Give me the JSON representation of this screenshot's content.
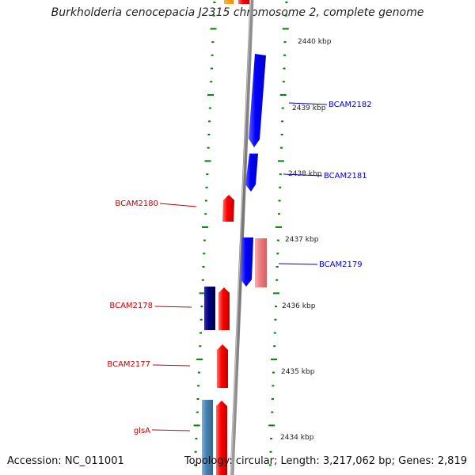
{
  "title": "Burkholderia cenocepacia J2315 chromosome 2, complete genome",
  "accession": "Accession: NC_011001",
  "summary": "Topology: circular; Length: 3,217,062 bp; Genes: 2,819",
  "scale_labels": [
    "2440 kbp",
    "2439 kbp",
    "2438 kbp",
    "2437 kbp",
    "2436 kbp",
    "2435 kbp",
    "2434 kbp"
  ],
  "genes": [
    {
      "name": "BCAM2182",
      "strand": "forward",
      "color": "#0000ff"
    },
    {
      "name": "BCAM2181",
      "strand": "forward",
      "color": "#0000ff"
    },
    {
      "name": "BCAM2180",
      "strand": "reverse",
      "color": "#ff0000"
    },
    {
      "name": "BCAM2179",
      "strand": "forward",
      "color": "#0000ff"
    },
    {
      "name": "BCAM2178",
      "strand": "reverse",
      "color": "#ff0000"
    },
    {
      "name": "BCAM2177",
      "strand": "reverse",
      "color": "#ff0000"
    },
    {
      "name": "glsA",
      "strand": "reverse",
      "color": "#ff0000"
    }
  ],
  "colors": {
    "forward_cds": "#0000ff",
    "reverse_cds": "#ff0000",
    "rna": "#f08080",
    "dark_feature": "#000080",
    "steel_feature": "#4682b4",
    "orange_feature": "#ff8c00",
    "backbone": "#808080",
    "ticks": "#008000"
  }
}
